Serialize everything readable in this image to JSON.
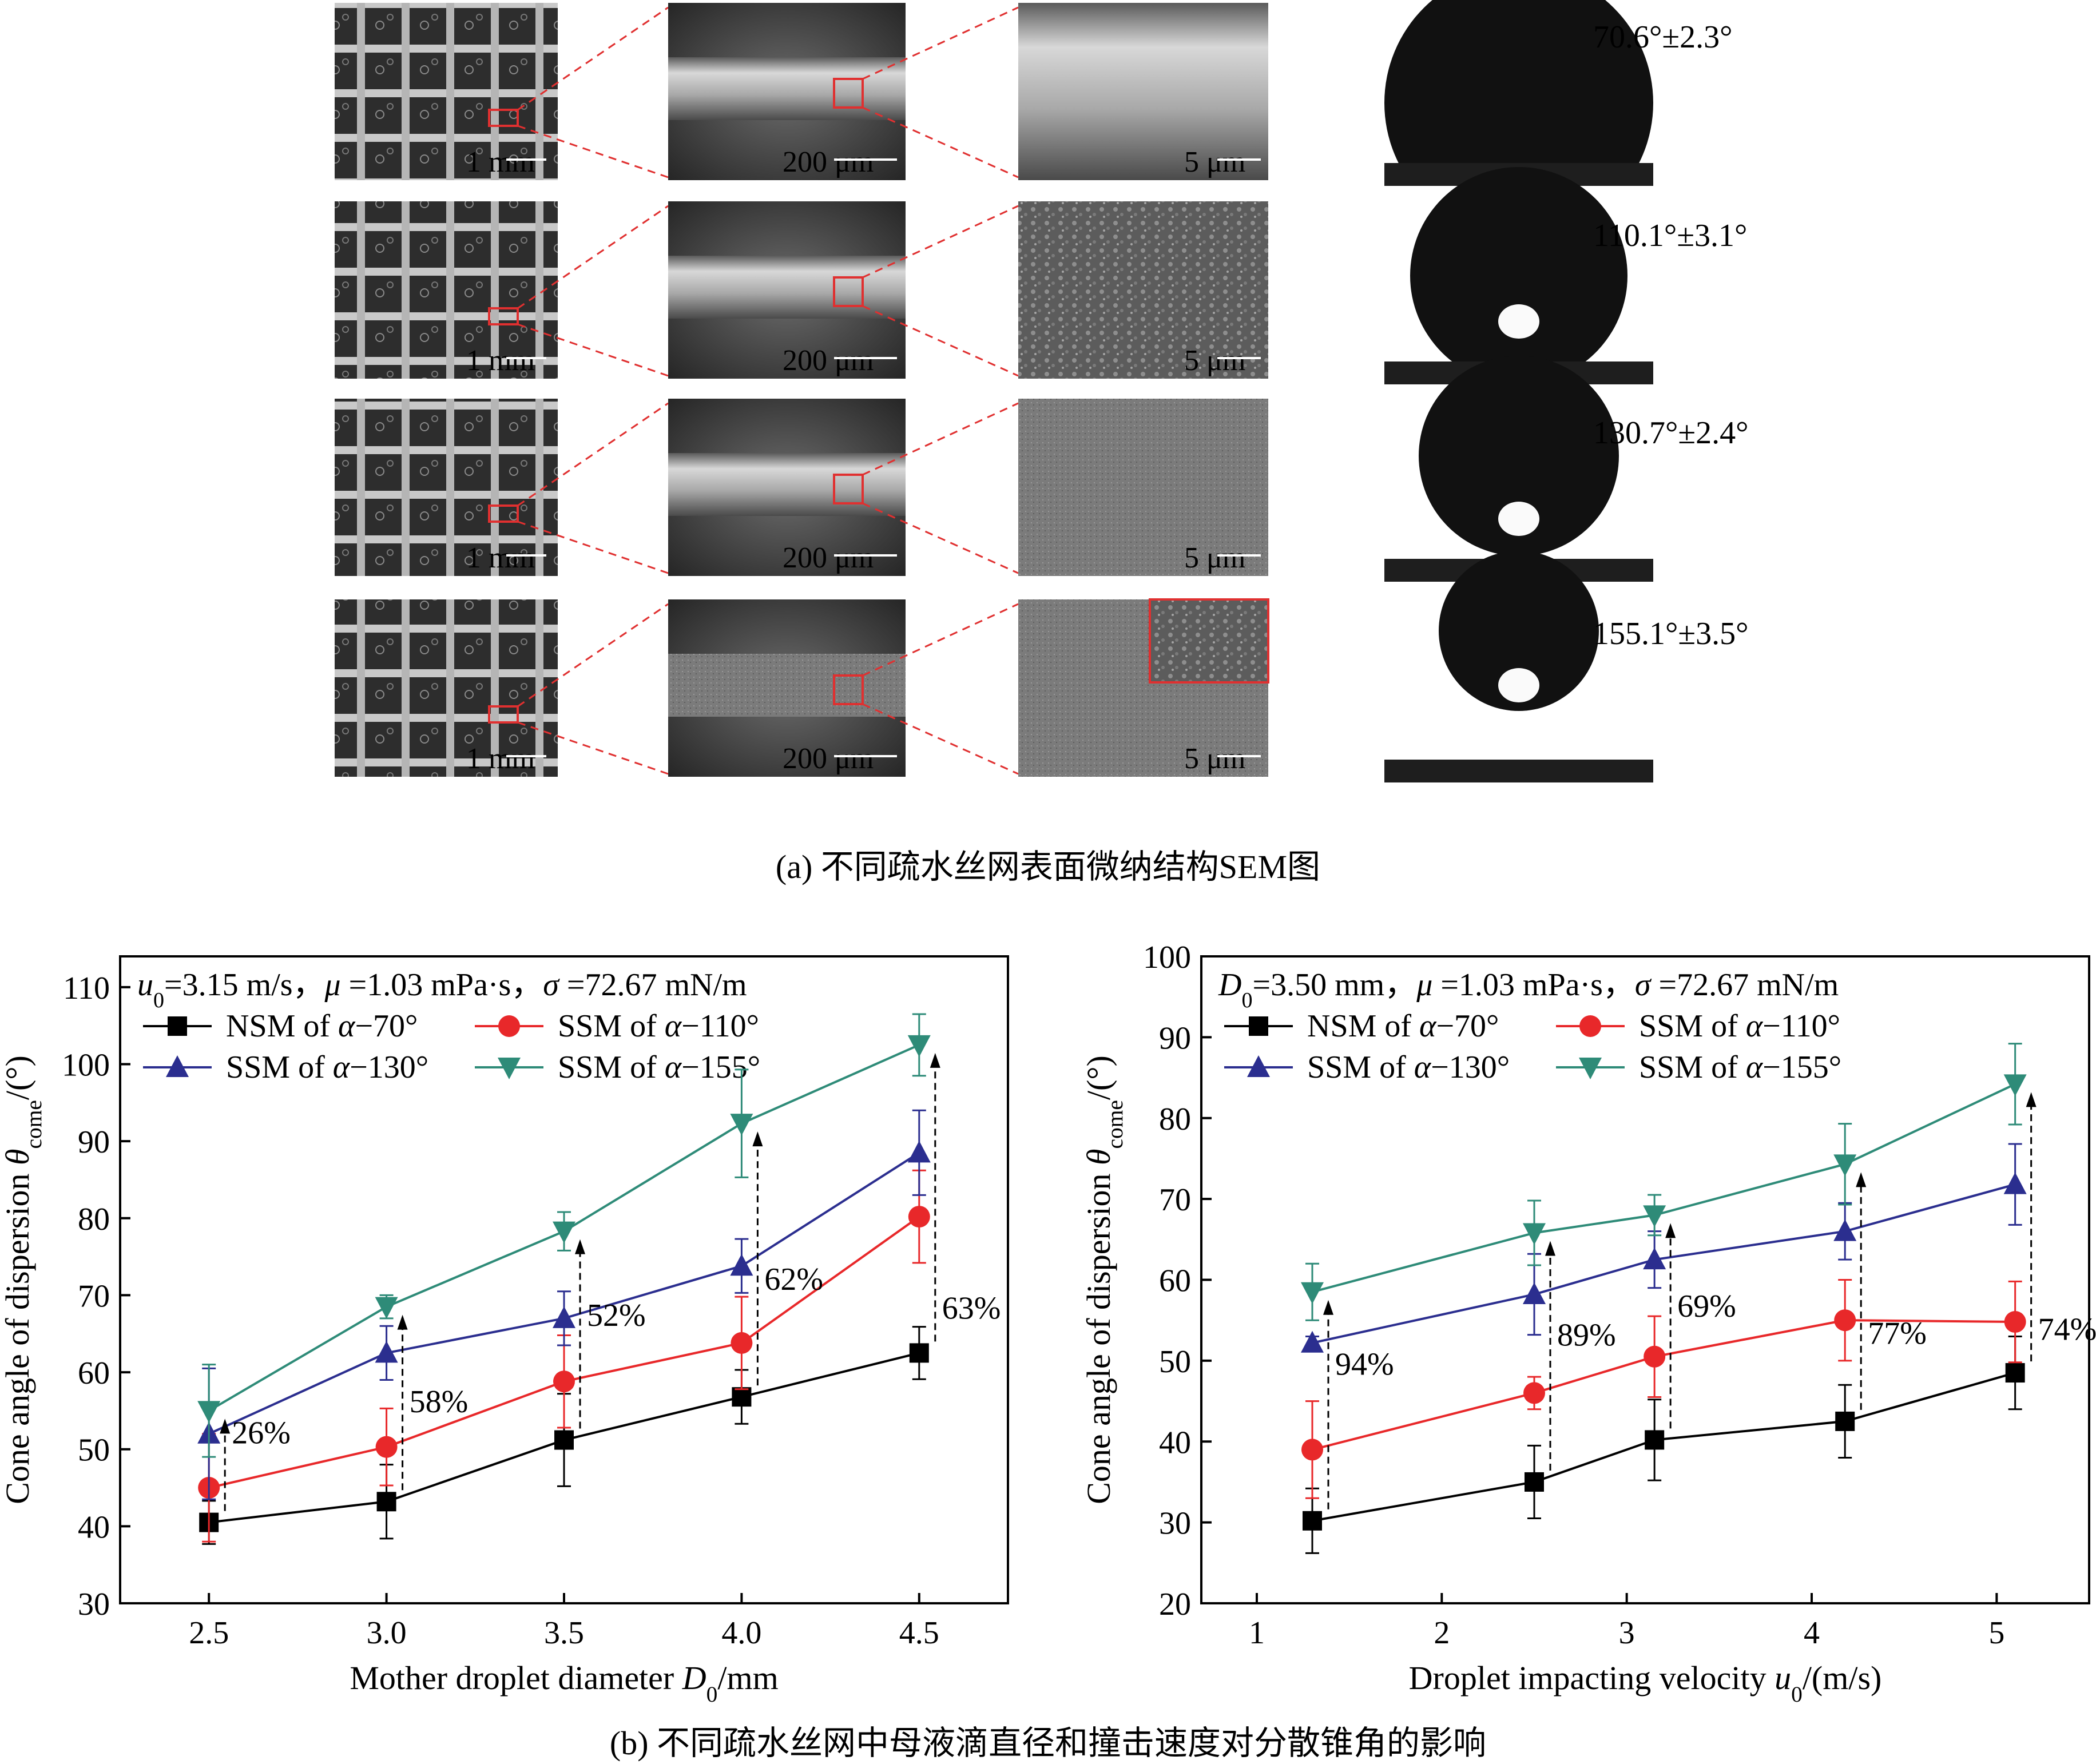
{
  "panel_a": {
    "caption": "(a) 不同疏水丝网表面微纳结构SEM图",
    "scale_bars": {
      "low": "1 mm",
      "mid": "200 μm",
      "high": "5 μm"
    },
    "contact_angles": [
      "70.6°±2.3°",
      "110.1°±3.1°",
      "130.7°±2.4°",
      "155.1°±3.5°"
    ]
  },
  "panel_b": {
    "caption": "(b) 不同疏水丝网中母液滴直径和撞击速度对分散锥角的影响"
  },
  "chart_data": [
    {
      "type": "line",
      "conditions": "u0=3.15 m/s，μ =1.03 mPa·s，σ =72.67 mN/m",
      "xlabel": "Mother droplet diameter D0/mm",
      "ylabel": "Cone angle of dispersion θcome/(°)",
      "xlim": [
        2.25,
        4.75
      ],
      "ylim": [
        30,
        114
      ],
      "xticks": [
        "2.5",
        "3.0",
        "3.5",
        "4.0",
        "4.5"
      ],
      "yticks": [
        "30",
        "40",
        "50",
        "60",
        "70",
        "80",
        "90",
        "100",
        "110"
      ],
      "x": [
        2.5,
        3.0,
        3.5,
        4.0,
        4.5
      ],
      "series": [
        {
          "name": "NSM of α−70°",
          "marker": "square",
          "color": "#000000",
          "values": [
            40.5,
            43.2,
            51.2,
            56.8,
            62.5
          ],
          "err": [
            2.8,
            4.8,
            6.0,
            3.5,
            3.4
          ]
        },
        {
          "name": "SSM of α−110°",
          "marker": "circle",
          "color": "#e8282a",
          "values": [
            45.0,
            50.3,
            58.8,
            63.8,
            80.2
          ],
          "err": [
            7.0,
            5.0,
            6.0,
            6.0,
            6.0
          ]
        },
        {
          "name": "SSM of α−130°",
          "marker": "triangle-up",
          "color": "#2b2e8f",
          "values": [
            52.0,
            62.5,
            67.0,
            73.8,
            88.5
          ],
          "err": [
            8.5,
            3.5,
            3.5,
            3.5,
            5.5
          ]
        },
        {
          "name": "SSM of α−155°",
          "marker": "triangle-down",
          "color": "#2e8b78",
          "values": [
            55.0,
            68.5,
            78.3,
            92.3,
            102.5
          ],
          "err": [
            6.0,
            1.5,
            2.5,
            7.0,
            4.0
          ]
        }
      ],
      "annotations": [
        "26%",
        "58%",
        "52%",
        "62%",
        "63%"
      ]
    },
    {
      "type": "line",
      "conditions": "D0=3.50 mm，μ =1.03 mPa·s，σ =72.67 mN/m",
      "xlabel": "Droplet impacting velocity u0/(m/s)",
      "ylabel": "Cone angle of dispersion θcome/(°)",
      "xlim": [
        0.7,
        5.5
      ],
      "ylim": [
        20,
        100
      ],
      "xticks": [
        "1",
        "2",
        "3",
        "4",
        "5"
      ],
      "yticks": [
        "20",
        "30",
        "40",
        "50",
        "60",
        "70",
        "80",
        "90",
        "100"
      ],
      "x": [
        1.3,
        2.5,
        3.15,
        4.18,
        5.1
      ],
      "series": [
        {
          "name": "NSM of α−70°",
          "marker": "square",
          "color": "#000000",
          "values": [
            30.2,
            35.0,
            40.2,
            42.5,
            48.5
          ],
          "err": [
            4.0,
            4.5,
            5.0,
            4.5,
            4.5
          ]
        },
        {
          "name": "SSM of α−110°",
          "marker": "circle",
          "color": "#e8282a",
          "values": [
            39.0,
            46.0,
            50.5,
            55.0,
            54.8
          ],
          "err": [
            6.0,
            2.0,
            5.0,
            5.0,
            5.0
          ]
        },
        {
          "name": "SSM of α−130°",
          "marker": "triangle-up",
          "color": "#2b2e8f",
          "values": [
            52.2,
            58.2,
            62.5,
            66.0,
            71.8
          ],
          "err": [
            0.8,
            5.0,
            3.5,
            3.5,
            5.0
          ]
        },
        {
          "name": "SSM of α−155°",
          "marker": "triangle-down",
          "color": "#2e8b78",
          "values": [
            58.5,
            65.8,
            68.0,
            74.3,
            84.2
          ],
          "err": [
            3.5,
            4.0,
            2.5,
            5.0,
            5.0
          ]
        }
      ],
      "annotations": [
        "94%",
        "89%",
        "69%",
        "77%",
        "74%"
      ]
    }
  ]
}
